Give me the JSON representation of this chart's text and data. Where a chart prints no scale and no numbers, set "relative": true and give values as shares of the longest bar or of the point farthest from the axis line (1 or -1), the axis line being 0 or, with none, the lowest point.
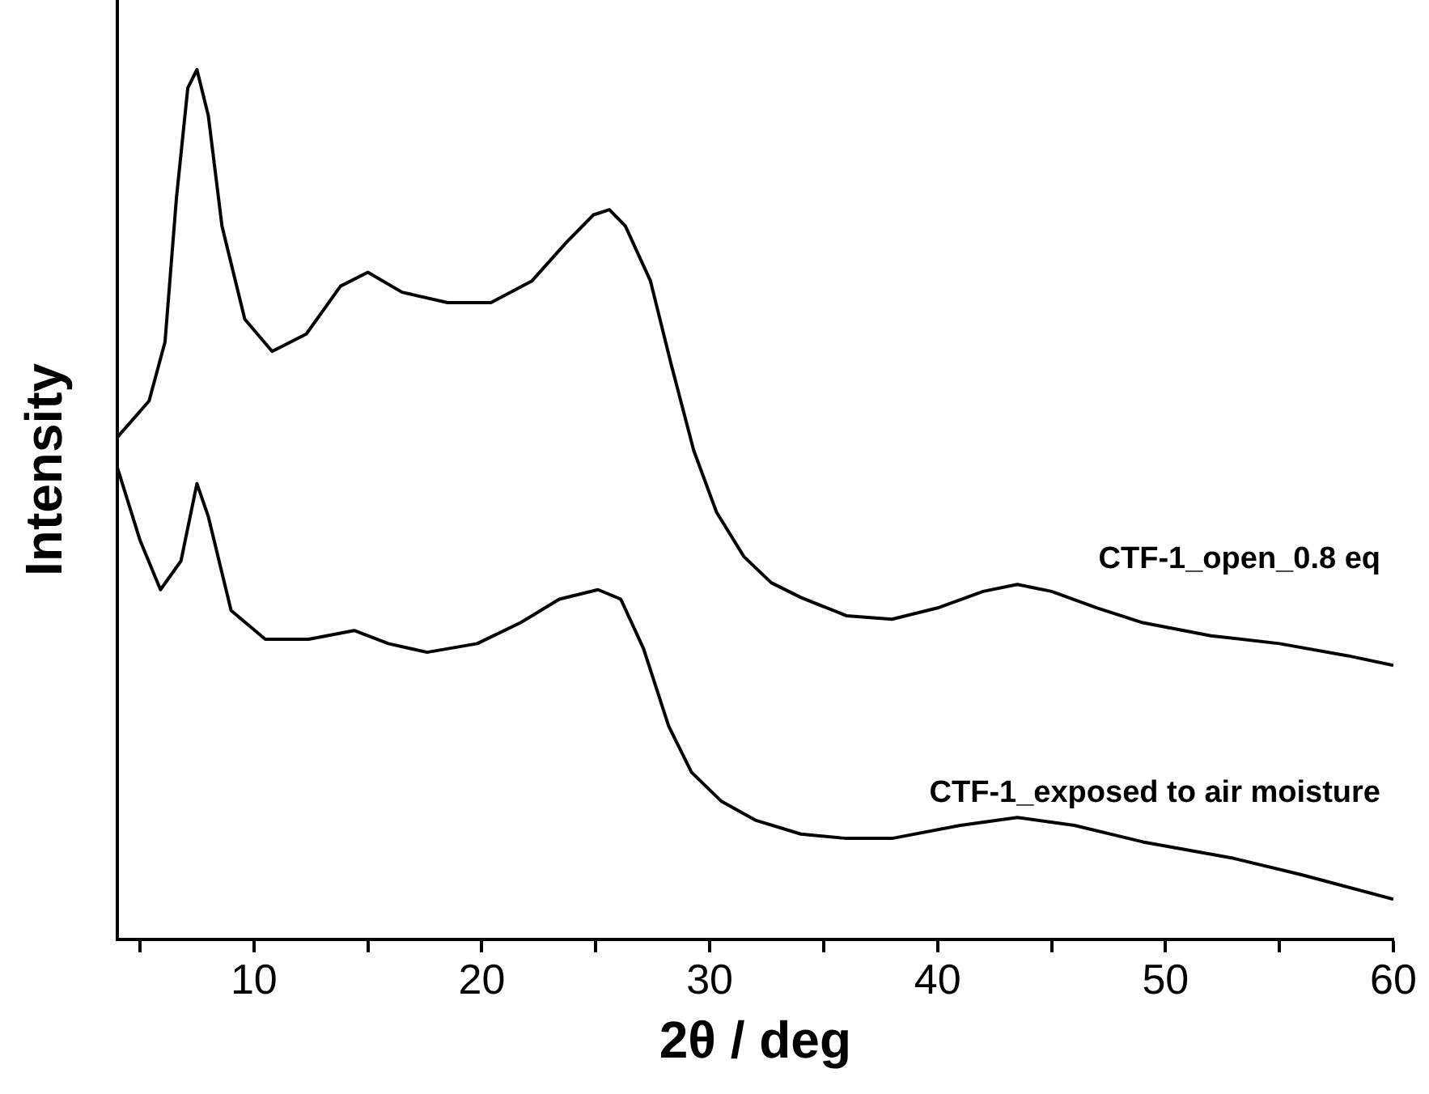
{
  "chart_data": {
    "type": "line",
    "relative": true,
    "xlabel": "2θ / deg",
    "ylabel": "Intensity",
    "xlim": [
      4,
      60
    ],
    "xticks": [
      {
        "value": 5,
        "label": null
      },
      10,
      {
        "value": 15,
        "label": null
      },
      20,
      {
        "value": 25,
        "label": null
      },
      30,
      {
        "value": 35,
        "label": null
      },
      40,
      {
        "value": 45,
        "label": null
      },
      50,
      {
        "value": 55,
        "label": null
      },
      60
    ],
    "grid": false,
    "legend": false,
    "marker": "none",
    "line_style": "solid",
    "series": [
      {
        "name": "CTF-1_open_0.8 eq",
        "color": "#000000",
        "x": [
          4.0,
          5.4,
          6.1,
          6.6,
          7.1,
          7.5,
          8.0,
          8.6,
          9.6,
          10.8,
          12.3,
          13.8,
          15.0,
          16.5,
          18.5,
          20.4,
          22.2,
          23.7,
          24.9,
          25.6,
          26.3,
          27.4,
          28.3,
          29.3,
          30.3,
          31.5,
          32.7,
          34.0,
          36.0,
          38.0,
          40.0,
          42.0,
          43.5,
          45.0,
          47.0,
          49.0,
          52.0,
          55.0,
          58.0,
          60.0
        ],
        "values": [
          0.577,
          0.619,
          0.687,
          0.852,
          0.979,
          1.0,
          0.947,
          0.82,
          0.713,
          0.676,
          0.696,
          0.751,
          0.767,
          0.744,
          0.732,
          0.732,
          0.757,
          0.801,
          0.833,
          0.839,
          0.82,
          0.757,
          0.662,
          0.562,
          0.491,
          0.44,
          0.41,
          0.393,
          0.372,
          0.368,
          0.381,
          0.4,
          0.408,
          0.4,
          0.381,
          0.364,
          0.349,
          0.34,
          0.326,
          0.315
        ]
      },
      {
        "name": "CTF-1_exposed to air moisture",
        "color": "#000000",
        "x": [
          4.0,
          5.0,
          5.9,
          6.8,
          7.5,
          8.0,
          9.0,
          10.5,
          12.4,
          14.4,
          15.9,
          17.6,
          19.8,
          21.7,
          23.4,
          25.1,
          26.1,
          27.1,
          28.2,
          29.2,
          30.5,
          32.0,
          34.0,
          36.0,
          38.0,
          41.0,
          43.5,
          46.0,
          49.0,
          53.0,
          56.0,
          60.0
        ],
        "values": [
          0.543,
          0.459,
          0.402,
          0.435,
          0.524,
          0.486,
          0.378,
          0.345,
          0.345,
          0.355,
          0.34,
          0.33,
          0.34,
          0.364,
          0.391,
          0.402,
          0.391,
          0.334,
          0.245,
          0.192,
          0.159,
          0.137,
          0.121,
          0.116,
          0.116,
          0.131,
          0.14,
          0.131,
          0.112,
          0.093,
          0.074,
          0.046
        ]
      }
    ]
  }
}
